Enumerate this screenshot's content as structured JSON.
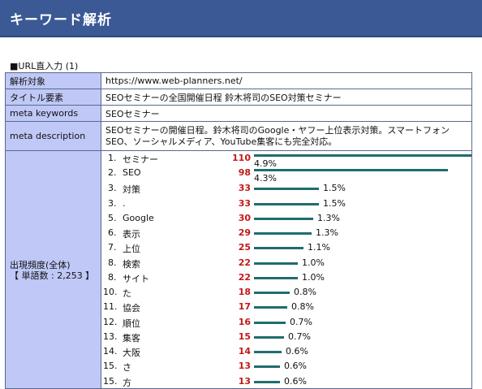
{
  "header": {
    "title": "キーワード解析"
  },
  "section": {
    "title": "■URL直入力 (1)"
  },
  "info_rows": [
    {
      "label": "解析対象",
      "value": "https://www.web-planners.net/"
    },
    {
      "label": "タイトル要素",
      "value": "SEOセミナーの全国開催日程 鈴木将司のSEO対策セミナー"
    },
    {
      "label": "meta keywords",
      "value": "SEOセミナー"
    },
    {
      "label": "meta description",
      "value": "SEOセミナーの開催日程。鈴木将司のGoogle・ヤフー上位表示対策。スマートフォンSEO、ソーシャルメディア、YouTube集客にも完全対応。"
    }
  ],
  "frequency": {
    "label_line1": "出現頻度(全体)",
    "label_line2": "【 単語数 : 2,253 】",
    "words": [
      {
        "rank": "1.",
        "word": "セミナー",
        "count": "110",
        "count_value": 110,
        "percent": "4.9%"
      },
      {
        "rank": "2.",
        "word": "SEO",
        "count": "98",
        "count_value": 98,
        "percent": "4.3%"
      },
      {
        "rank": "3.",
        "word": "対策",
        "count": "33",
        "count_value": 33,
        "percent": "1.5%"
      },
      {
        "rank": "3.",
        "word": ".",
        "count": "33",
        "count_value": 33,
        "percent": "1.5%"
      },
      {
        "rank": "5.",
        "word": "Google",
        "count": "30",
        "count_value": 30,
        "percent": "1.3%"
      },
      {
        "rank": "6.",
        "word": "表示",
        "count": "29",
        "count_value": 29,
        "percent": "1.3%"
      },
      {
        "rank": "7.",
        "word": "上位",
        "count": "25",
        "count_value": 25,
        "percent": "1.1%"
      },
      {
        "rank": "8.",
        "word": "検索",
        "count": "22",
        "count_value": 22,
        "percent": "1.0%"
      },
      {
        "rank": "8.",
        "word": "サイト",
        "count": "22",
        "count_value": 22,
        "percent": "1.0%"
      },
      {
        "rank": "10.",
        "word": "た",
        "count": "18",
        "count_value": 18,
        "percent": "0.8%"
      },
      {
        "rank": "11.",
        "word": "協会",
        "count": "17",
        "count_value": 17,
        "percent": "0.8%"
      },
      {
        "rank": "12.",
        "word": "順位",
        "count": "16",
        "count_value": 16,
        "percent": "0.7%"
      },
      {
        "rank": "13.",
        "word": "集客",
        "count": "15",
        "count_value": 15,
        "percent": "0.7%"
      },
      {
        "rank": "14.",
        "word": "大阪",
        "count": "14",
        "count_value": 14,
        "percent": "0.6%"
      },
      {
        "rank": "15.",
        "word": "さ",
        "count": "13",
        "count_value": 13,
        "percent": "0.6%"
      },
      {
        "rank": "15.",
        "word": "方",
        "count": "13",
        "count_value": 13,
        "percent": "0.6%"
      }
    ]
  },
  "colors": {
    "header_bg": "#3b5994",
    "label_bg": "#bfc8f6",
    "count_red": "#c41818",
    "bar_teal": "#1f6d6e"
  }
}
